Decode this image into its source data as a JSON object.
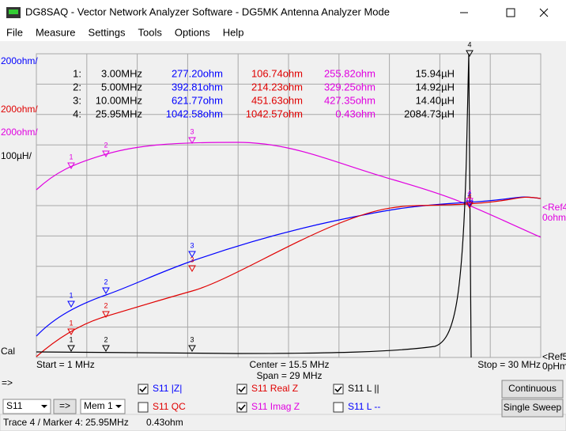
{
  "window": {
    "title": "DG8SAQ  -  Vector Network Analyzer Software - DG5MK Antenna Analyzer Mode"
  },
  "menu": [
    "File",
    "Measure",
    "Settings",
    "Tools",
    "Options",
    "Help"
  ],
  "scale_labels": [
    {
      "text": "200ohm/",
      "color": "#0000ff"
    },
    {
      "text": "200ohm/",
      "color": "#e00000"
    },
    {
      "text": "200ohm/",
      "color": "#e000e0"
    },
    {
      "text": "100µH/",
      "color": "#000000"
    },
    {
      "text": "Cal",
      "color": "#000000"
    }
  ],
  "marker_table": {
    "colors": [
      "#000000",
      "#000000",
      "#0000ff",
      "#e00000",
      "#e000e0",
      "#000000"
    ],
    "rows": [
      [
        "1:",
        "3.00MHz",
        "277.20ohm",
        "106.74ohm",
        "255.82ohm",
        "15.94µH"
      ],
      [
        "2:",
        "5.00MHz",
        "392.81ohm",
        "214.23ohm",
        "329.25ohm",
        "14.92µH"
      ],
      [
        "3:",
        "10.00MHz",
        "621.77ohm",
        "451.63ohm",
        "427.35ohm",
        "14.40µH"
      ],
      [
        "4:",
        "25.95MHz",
        "1042.58ohm",
        "1042.57ohm",
        "0.43ohm",
        "2084.73µH"
      ]
    ]
  },
  "marker_ids": [
    "1",
    "2",
    "3",
    "4"
  ],
  "ref_labels": [
    {
      "text": "<Ref4",
      "color": "#e000e0"
    },
    {
      "text": "0ohm",
      "color": "#e000e0"
    },
    {
      "text": "<Ref5",
      "color": "#000000"
    },
    {
      "text": "0pHm",
      "color": "#000000"
    }
  ],
  "sweep": {
    "start": "Start = 1 MHz",
    "center": "Center = 15.5 MHz",
    "span": "Span = 29 MHz",
    "stop": "Stop = 30 MHz"
  },
  "arrow": "=>",
  "traces": [
    {
      "label": "S11  |Z|",
      "checked": true,
      "color": "#0000ff"
    },
    {
      "label": "S11  Real Z",
      "checked": true,
      "color": "#e00000"
    },
    {
      "label": "S11  L ||",
      "checked": true,
      "color": "#000000"
    },
    {
      "label": "S11  QC",
      "checked": false,
      "color": "#e00000"
    },
    {
      "label": "S11  Imag Z",
      "checked": true,
      "color": "#e000e0"
    },
    {
      "label": "S11  L --",
      "checked": false,
      "color": "#0000ff"
    }
  ],
  "controls": {
    "port": "S11",
    "copy": "=>",
    "memory": "Mem 1",
    "continuous": "Continuous",
    "single": "Single Sweep"
  },
  "status": {
    "trace": "Trace 4 / Marker 4:",
    "freq": "25.95MHz",
    "value": "0.43ohm"
  }
}
